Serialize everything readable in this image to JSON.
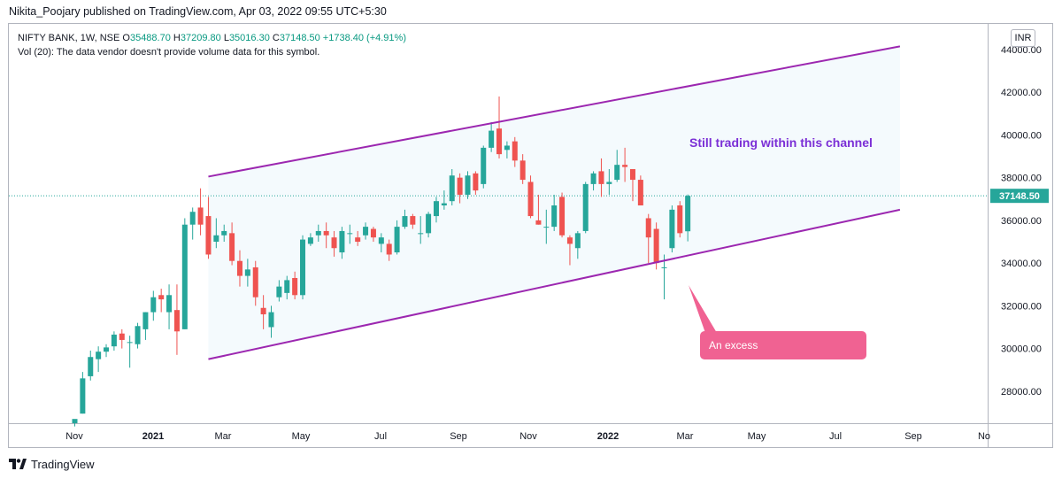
{
  "header": {
    "publisher_line": "Nikita_Poojary published on TradingView.com, Apr 03, 2022 09:55 UTC+5:30"
  },
  "legend": {
    "symbol": "NIFTY BANK, 1W, NSE",
    "o_label": "O",
    "o_value": "35488.70",
    "h_label": "H",
    "h_value": "37209.80",
    "l_label": "L",
    "l_value": "35016.30",
    "c_label": "C",
    "c_value": "37148.50",
    "change": "+1738.40 (+4.91%)",
    "vol_line": "Vol (20): The data vendor doesn't provide volume data for this symbol."
  },
  "currency_button": "INR",
  "footer": {
    "brand": "TradingView"
  },
  "colors": {
    "up": "#26a69a",
    "down": "#ef5350",
    "channel": "#9c27b0",
    "channel_fill": "#f4fafd",
    "annotation_bg": "#f06292",
    "price_line": "#26a69a"
  },
  "chart_data": {
    "type": "candlestick",
    "title": "NIFTY BANK, 1W, NSE",
    "ylim": [
      26500,
      45200
    ],
    "y_ticks": [
      "28000.00",
      "30000.00",
      "32000.00",
      "34000.00",
      "36000.00",
      "38000.00",
      "40000.00",
      "42000.00",
      "44000.00"
    ],
    "x_tick_labels": [
      "Nov",
      "2021",
      "Mar",
      "May",
      "Jul",
      "Sep",
      "Nov",
      "2022",
      "Mar",
      "May",
      "Jul",
      "Sep",
      "No"
    ],
    "last_price_label": "37148.50",
    "last_price": 37148.5,
    "candles": [
      {
        "o": 26500,
        "h": 26650,
        "l": 26350,
        "c": 26700
      },
      {
        "o": 26950,
        "h": 28900,
        "l": 26950,
        "c": 28600
      },
      {
        "o": 28700,
        "h": 29900,
        "l": 28500,
        "c": 29600
      },
      {
        "o": 29500,
        "h": 30100,
        "l": 28900,
        "c": 29850
      },
      {
        "o": 29850,
        "h": 30200,
        "l": 29600,
        "c": 30050
      },
      {
        "o": 30100,
        "h": 30800,
        "l": 29900,
        "c": 30650
      },
      {
        "o": 30700,
        "h": 30900,
        "l": 30000,
        "c": 30400
      },
      {
        "o": 30300,
        "h": 30600,
        "l": 29100,
        "c": 30300
      },
      {
        "o": 30200,
        "h": 31200,
        "l": 30000,
        "c": 31050
      },
      {
        "o": 30900,
        "h": 31700,
        "l": 30400,
        "c": 31700
      },
      {
        "o": 31700,
        "h": 32700,
        "l": 31300,
        "c": 32400
      },
      {
        "o": 32500,
        "h": 32800,
        "l": 31700,
        "c": 32300
      },
      {
        "o": 31700,
        "h": 33000,
        "l": 30900,
        "c": 32500
      },
      {
        "o": 31800,
        "h": 33000,
        "l": 29700,
        "c": 30800
      },
      {
        "o": 30900,
        "h": 36100,
        "l": 30900,
        "c": 35800
      },
      {
        "o": 35800,
        "h": 36600,
        "l": 35100,
        "c": 36400
      },
      {
        "o": 36600,
        "h": 37500,
        "l": 35300,
        "c": 35800
      },
      {
        "o": 36200,
        "h": 37100,
        "l": 34200,
        "c": 34400
      },
      {
        "o": 35000,
        "h": 36100,
        "l": 34700,
        "c": 35300
      },
      {
        "o": 35300,
        "h": 35800,
        "l": 35000,
        "c": 35500
      },
      {
        "o": 35400,
        "h": 35900,
        "l": 33900,
        "c": 34100
      },
      {
        "o": 34100,
        "h": 34600,
        "l": 32900,
        "c": 33400
      },
      {
        "o": 33400,
        "h": 34200,
        "l": 32900,
        "c": 33700
      },
      {
        "o": 33800,
        "h": 34100,
        "l": 32000,
        "c": 32400
      },
      {
        "o": 31900,
        "h": 32500,
        "l": 30900,
        "c": 31600
      },
      {
        "o": 31000,
        "h": 32000,
        "l": 30500,
        "c": 31700
      },
      {
        "o": 32400,
        "h": 33200,
        "l": 32200,
        "c": 32900
      },
      {
        "o": 32600,
        "h": 33400,
        "l": 32300,
        "c": 33200
      },
      {
        "o": 33300,
        "h": 33600,
        "l": 32300,
        "c": 32500
      },
      {
        "o": 32500,
        "h": 35300,
        "l": 32300,
        "c": 35100
      },
      {
        "o": 34900,
        "h": 35400,
        "l": 34800,
        "c": 35200
      },
      {
        "o": 35300,
        "h": 35800,
        "l": 35000,
        "c": 35500
      },
      {
        "o": 35500,
        "h": 35900,
        "l": 34700,
        "c": 35300
      },
      {
        "o": 35200,
        "h": 35500,
        "l": 34300,
        "c": 34700
      },
      {
        "o": 34500,
        "h": 35700,
        "l": 34200,
        "c": 35500
      },
      {
        "o": 35400,
        "h": 35800,
        "l": 34900,
        "c": 35400
      },
      {
        "o": 35200,
        "h": 35500,
        "l": 34800,
        "c": 35000
      },
      {
        "o": 35300,
        "h": 35900,
        "l": 35100,
        "c": 35700
      },
      {
        "o": 35600,
        "h": 35700,
        "l": 35000,
        "c": 35200
      },
      {
        "o": 34900,
        "h": 35400,
        "l": 34500,
        "c": 35200
      },
      {
        "o": 34900,
        "h": 35100,
        "l": 34100,
        "c": 34400
      },
      {
        "o": 34500,
        "h": 36000,
        "l": 34400,
        "c": 35700
      },
      {
        "o": 35700,
        "h": 36500,
        "l": 35600,
        "c": 36200
      },
      {
        "o": 36200,
        "h": 36300,
        "l": 35600,
        "c": 35800
      },
      {
        "o": 35400,
        "h": 36200,
        "l": 34900,
        "c": 35400
      },
      {
        "o": 35400,
        "h": 36400,
        "l": 35200,
        "c": 36300
      },
      {
        "o": 36200,
        "h": 37100,
        "l": 35900,
        "c": 36900
      },
      {
        "o": 36700,
        "h": 37400,
        "l": 36500,
        "c": 36800
      },
      {
        "o": 36900,
        "h": 38400,
        "l": 36700,
        "c": 38100
      },
      {
        "o": 38000,
        "h": 38200,
        "l": 36800,
        "c": 37200
      },
      {
        "o": 37200,
        "h": 38300,
        "l": 37000,
        "c": 38100
      },
      {
        "o": 38200,
        "h": 38300,
        "l": 37200,
        "c": 37400
      },
      {
        "o": 37700,
        "h": 39500,
        "l": 37500,
        "c": 39400
      },
      {
        "o": 39400,
        "h": 40600,
        "l": 39200,
        "c": 40200
      },
      {
        "o": 40300,
        "h": 41800,
        "l": 38900,
        "c": 39100
      },
      {
        "o": 39300,
        "h": 39700,
        "l": 38900,
        "c": 39500
      },
      {
        "o": 39700,
        "h": 39900,
        "l": 38500,
        "c": 38800
      },
      {
        "o": 38800,
        "h": 39100,
        "l": 37700,
        "c": 37900
      },
      {
        "o": 37800,
        "h": 38100,
        "l": 36100,
        "c": 36200
      },
      {
        "o": 36000,
        "h": 37200,
        "l": 35800,
        "c": 35800
      },
      {
        "o": 35700,
        "h": 36500,
        "l": 34900,
        "c": 35700
      },
      {
        "o": 35700,
        "h": 37200,
        "l": 35500,
        "c": 36700
      },
      {
        "o": 37100,
        "h": 37300,
        "l": 35200,
        "c": 35300
      },
      {
        "o": 35200,
        "h": 35300,
        "l": 33900,
        "c": 34900
      },
      {
        "o": 34700,
        "h": 35500,
        "l": 34200,
        "c": 35400
      },
      {
        "o": 35500,
        "h": 37800,
        "l": 35400,
        "c": 37700
      },
      {
        "o": 37700,
        "h": 38300,
        "l": 37400,
        "c": 38200
      },
      {
        "o": 38300,
        "h": 38900,
        "l": 37100,
        "c": 37700
      },
      {
        "o": 37700,
        "h": 38400,
        "l": 37200,
        "c": 37800
      },
      {
        "o": 37900,
        "h": 39300,
        "l": 37800,
        "c": 38600
      },
      {
        "o": 38600,
        "h": 39400,
        "l": 37800,
        "c": 38500
      },
      {
        "o": 38400,
        "h": 38400,
        "l": 36900,
        "c": 37900
      },
      {
        "o": 37900,
        "h": 38100,
        "l": 36700,
        "c": 36700
      },
      {
        "o": 36100,
        "h": 36300,
        "l": 34000,
        "c": 35200
      },
      {
        "o": 35600,
        "h": 35900,
        "l": 33700,
        "c": 34000
      },
      {
        "o": 33800,
        "h": 34400,
        "l": 32300,
        "c": 33800
      },
      {
        "o": 34700,
        "h": 36700,
        "l": 34500,
        "c": 36500
      },
      {
        "o": 36700,
        "h": 36900,
        "l": 35200,
        "c": 35400
      },
      {
        "o": 35488.7,
        "h": 37209.8,
        "l": 35016.3,
        "c": 37148.5
      }
    ],
    "channel": {
      "upper": [
        {
          "bar": 17,
          "y": 38050
        },
        {
          "bar": 105,
          "y": 44150
        }
      ],
      "lower": [
        {
          "bar": 17,
          "y": 29500
        },
        {
          "bar": 105,
          "y": 36500
        }
      ]
    },
    "annotations": [
      {
        "text": "Still trading within this channel",
        "color": "#7b2fd6"
      },
      {
        "text": "An excess",
        "color": "#ffffff"
      }
    ]
  }
}
